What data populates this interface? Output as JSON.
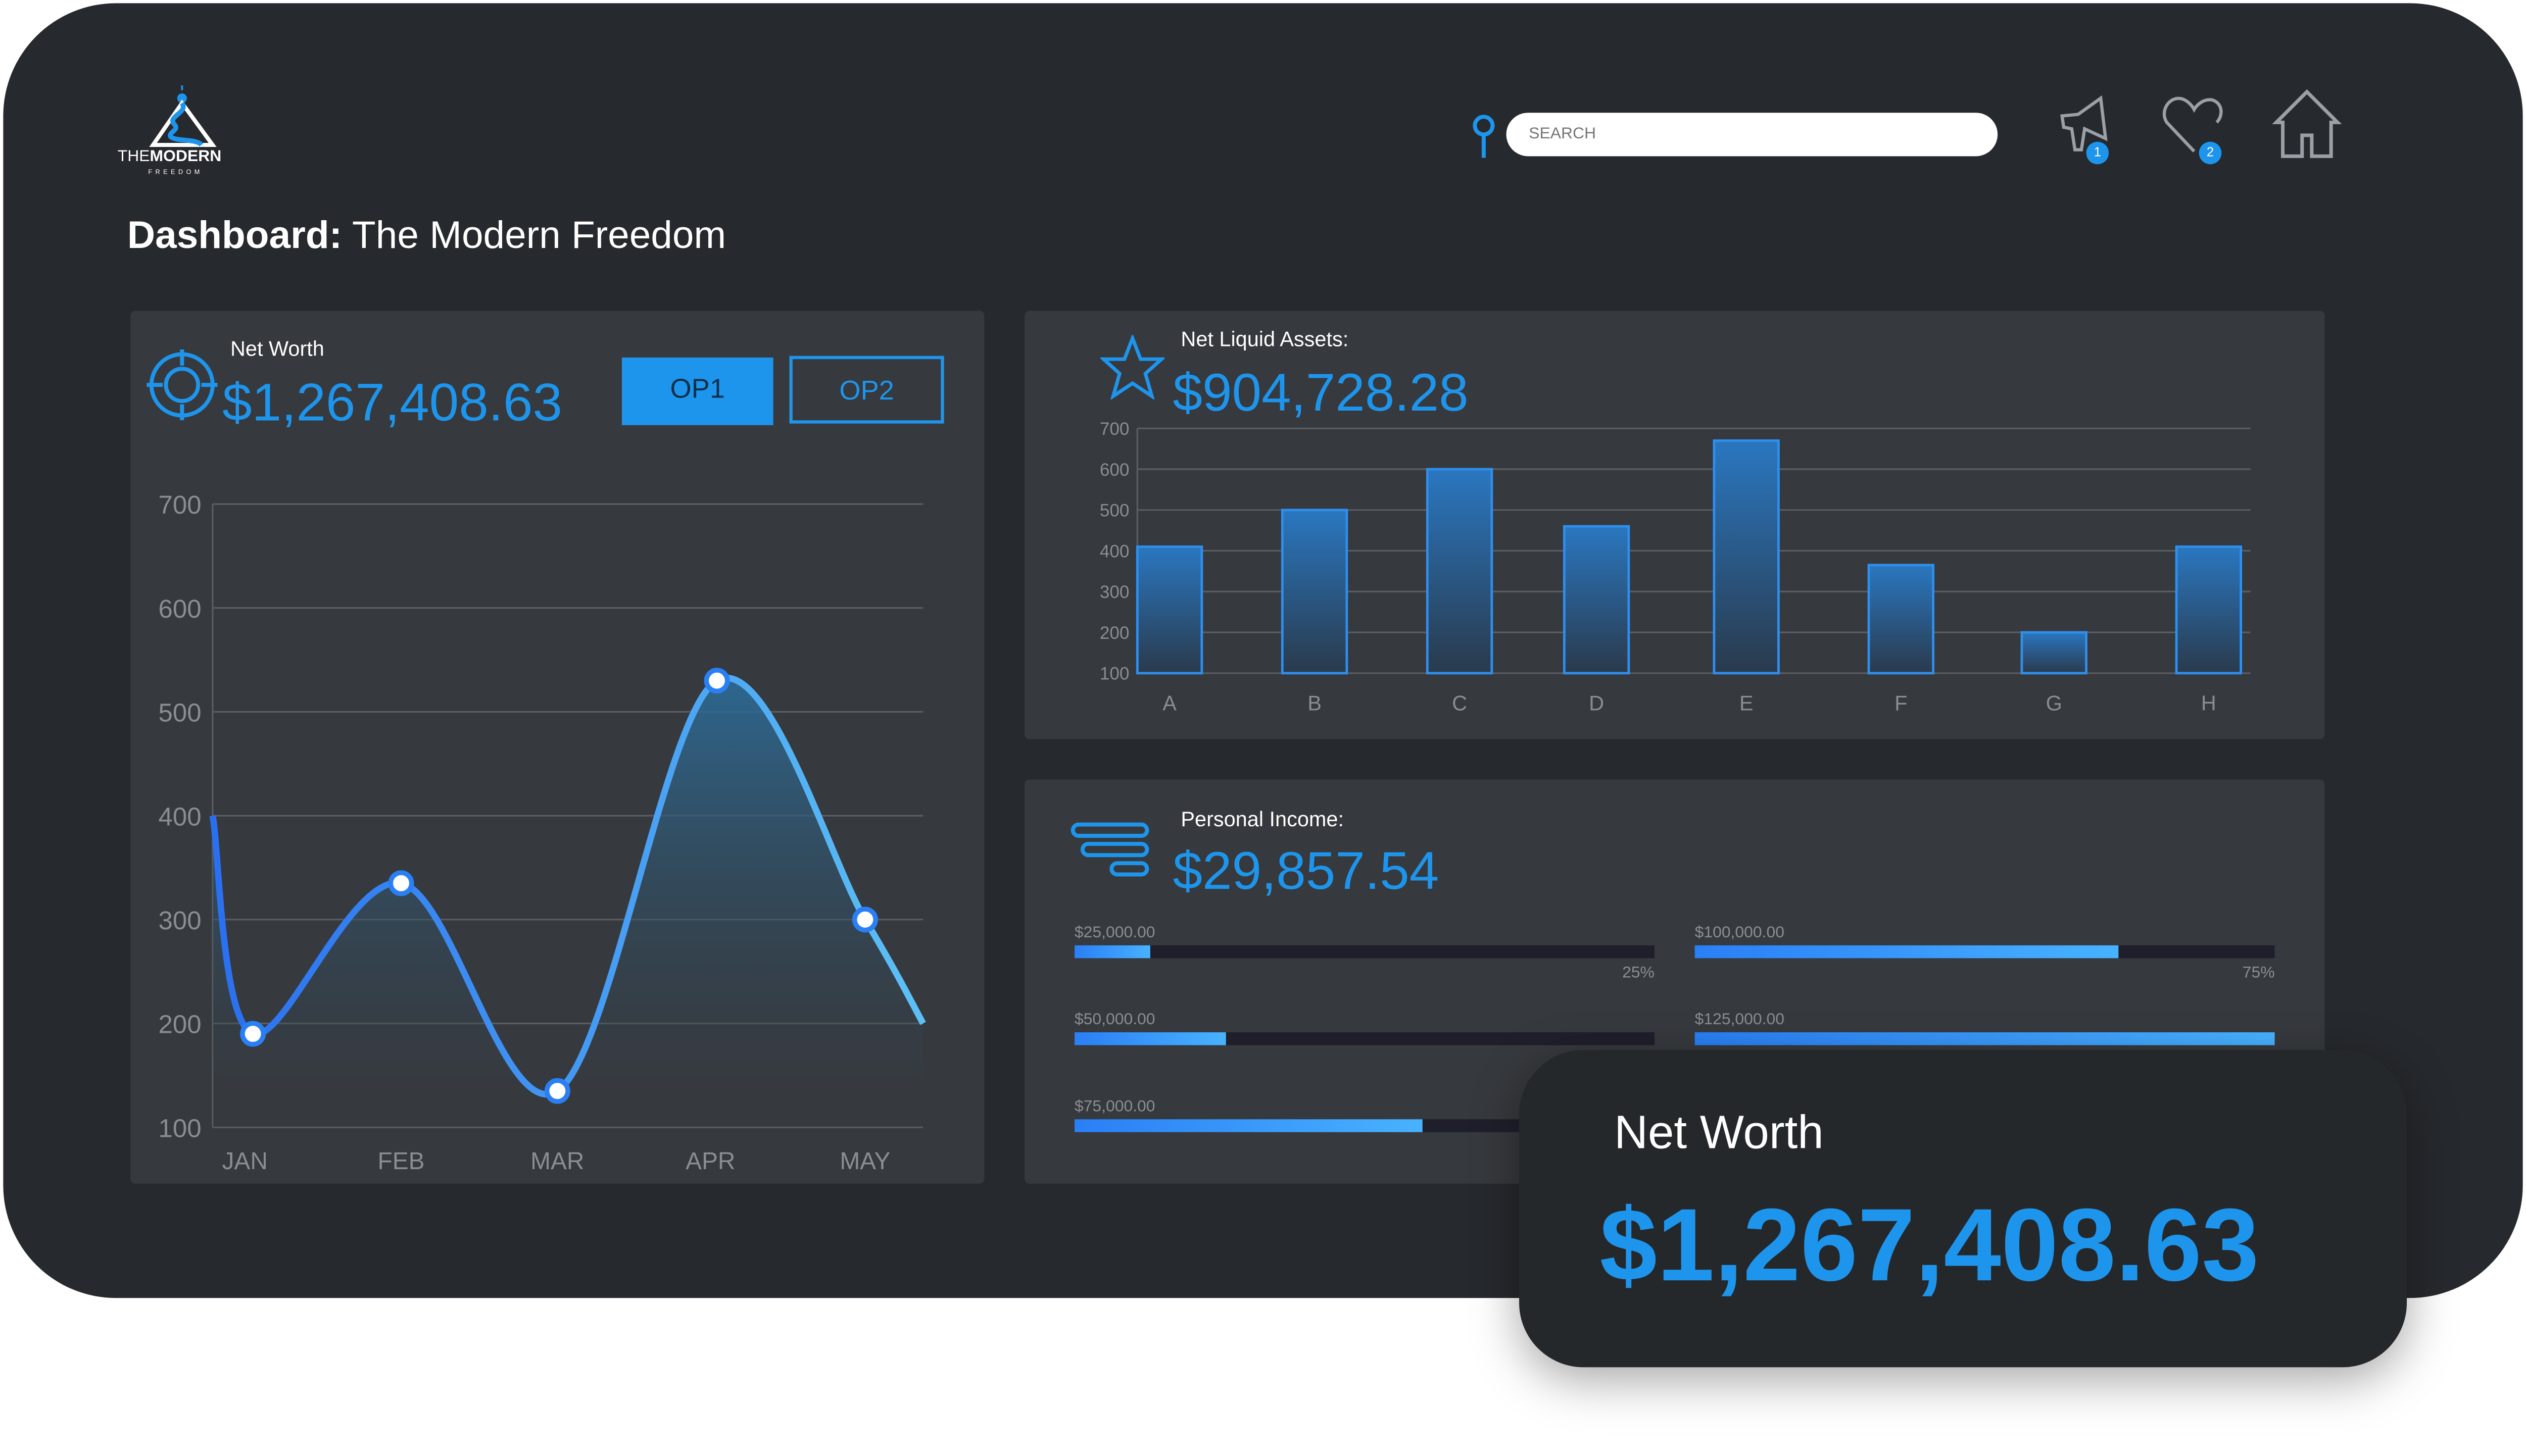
{
  "logo": {
    "text_a": "THE",
    "text_b": "MODERN",
    "text_c": "FREEDOM"
  },
  "search": {
    "placeholder": "SEARCH"
  },
  "header": {
    "notifications_count": "1",
    "favorites_count": "2"
  },
  "page_title": {
    "bold": "Dashboard:",
    "rest": " The Modern Freedom"
  },
  "net_worth": {
    "label": "Net Worth",
    "value": "$1,267,408.63",
    "op1": "OP1",
    "op2": "OP2"
  },
  "liquid": {
    "label": "Net Liquid Assets:",
    "value": "$904,728.28"
  },
  "income": {
    "label": "Personal Income:",
    "value": "$29,857.54",
    "bars": [
      {
        "label": "$25,000.00",
        "fraction": 0.13,
        "pct": "25%"
      },
      {
        "label": "$50,000.00",
        "fraction": 0.26,
        "pct": ""
      },
      {
        "label": "$75,000.00",
        "fraction": 0.6,
        "pct": ""
      },
      {
        "label": "$100,000.00",
        "fraction": 0.73,
        "pct": "75%"
      },
      {
        "label": "$125,000.00",
        "fraction": 1.0,
        "pct": ""
      }
    ]
  },
  "popup": {
    "label": "Net Worth",
    "value": "$1,267,408.63"
  },
  "colors": {
    "accent": "#1e95ec",
    "bg": "#26292d",
    "panel": "#36393d"
  },
  "chart_data": [
    {
      "type": "line",
      "title": "Net Worth",
      "categories": [
        "JAN",
        "FEB",
        "MAR",
        "APR",
        "MAY"
      ],
      "values": [
        190,
        335,
        135,
        530,
        300
      ],
      "start_value": 400,
      "end_value": 200,
      "yticks": [
        "700",
        "600",
        "500",
        "400",
        "300",
        "200",
        "100"
      ],
      "ylim": [
        100,
        700
      ]
    },
    {
      "type": "bar",
      "title": "Net Liquid Assets",
      "categories": [
        "A",
        "B",
        "C",
        "D",
        "E",
        "F",
        "G",
        "H"
      ],
      "values": [
        410,
        500,
        600,
        460,
        670,
        365,
        200,
        410
      ],
      "yticks": [
        "700",
        "600",
        "500",
        "400",
        "300",
        "200",
        "100"
      ],
      "ylim": [
        100,
        700
      ]
    }
  ]
}
